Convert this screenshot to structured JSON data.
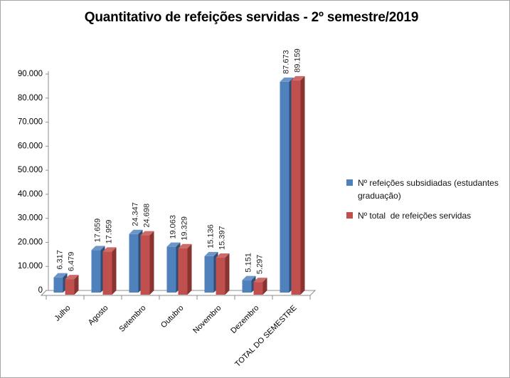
{
  "chart_data": {
    "type": "bar",
    "style": "3d-clustered-column",
    "title": "Quantitativo de refeições servidas - 2º semestre/2019",
    "categories": [
      "Julho",
      "Agosto",
      "Setembro",
      "Outubro",
      "Novembro",
      "Dezembro",
      "TOTAL DO SEMESTRE"
    ],
    "series": [
      {
        "name": "Nº refeições subsidiadas (estudantes graduação)",
        "color": "#4F81BD",
        "values": [
          6317,
          17659,
          24347,
          19063,
          15136,
          5151,
          87673
        ]
      },
      {
        "name": "Nº total  de refeições servidas",
        "color": "#C0504D",
        "values": [
          6479,
          17959,
          24698,
          19329,
          15397,
          5297,
          89159
        ]
      }
    ],
    "data_labels": [
      "6.317",
      "6.479",
      "17.659",
      "17.959",
      "24.347",
      "24.698",
      "19.063",
      "19.329",
      "15.136",
      "15.397",
      "5.151",
      "5.297",
      "87.673",
      "89.159"
    ],
    "ylim": [
      0,
      90000
    ],
    "y_tick_step": 10000,
    "y_tick_labels": [
      "0",
      "10.000",
      "20.000",
      "30.000",
      "40.000",
      "50.000",
      "60.000",
      "70.000",
      "80.000",
      "90.000"
    ],
    "grid": false,
    "legend_position": "right",
    "number_format": "thousands-dot"
  },
  "colors": {
    "background": "#FFFFFF",
    "frame_border": "#A6A6A6",
    "axis": "#8C8C8C",
    "tick_text": "#000000",
    "label_text": "#1F1F1F",
    "series_front": [
      "#4F81BD",
      "#C0504D"
    ],
    "series_side": [
      "#2E4E77",
      "#8A3432"
    ],
    "series_top": [
      "#6D96C8",
      "#CC6B68"
    ]
  }
}
